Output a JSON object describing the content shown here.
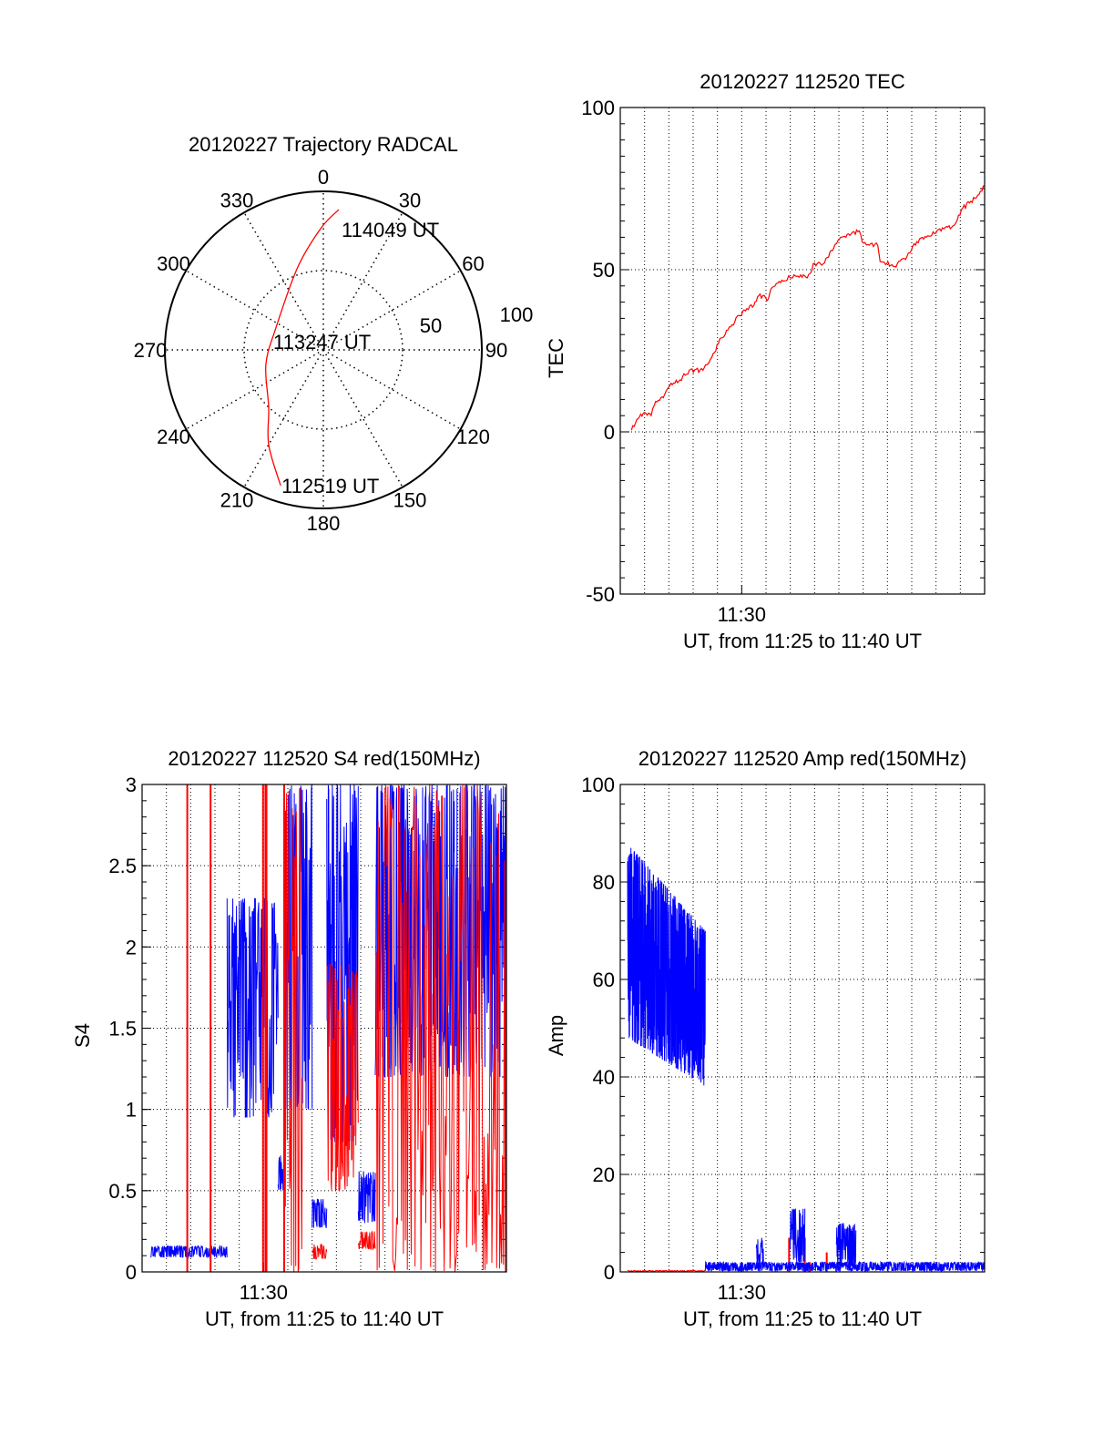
{
  "chart_data": [
    {
      "type": "polar",
      "title": "20120227 Trajectory RADCAL",
      "angle_labels": [
        "0",
        "30",
        "60",
        "90",
        "120",
        "150",
        "180",
        "210",
        "240",
        "270",
        "300",
        "330"
      ],
      "radius_labels": [
        "50",
        "100"
      ],
      "rlim": [
        0,
        100
      ],
      "grid": "dotted",
      "trajectory": {
        "color": "#ff0000",
        "azimuth": [
          197.5,
          210,
          223.6,
          255.7,
          294.8,
          342.9,
          359,
          6.3
        ],
        "radius": [
          89.7,
          69,
          50,
          37.4,
          33,
          54.7,
          77,
          89
        ]
      },
      "annotations": [
        "112519 UT",
        "113247 UT",
        "114049 UT"
      ]
    },
    {
      "type": "line",
      "title": "20120227 112520 TEC",
      "xlabel": "UT, from 11:25 to 11:40 UT",
      "ylabel": "TEC",
      "x_unit": "minutes after 11:25 UT",
      "xlim": [
        0,
        15
      ],
      "xtick_values": [
        5
      ],
      "xtick_labels": [
        "11:30"
      ],
      "ylim": [
        -50,
        100
      ],
      "ytick_values": [
        -50,
        0,
        50,
        100
      ],
      "ytick_labels": [
        "-50",
        "0",
        "50",
        "100"
      ],
      "grid": true,
      "series": [
        {
          "name": "TEC",
          "color": "#ff0000",
          "x": [
            0.46,
            0.84,
            1.27,
            1.46,
            1.77,
            2.09,
            2.46,
            2.84,
            3.4,
            3.77,
            4.15,
            4.6,
            5.1,
            5.5,
            5.7,
            6.1,
            6.2,
            6.6,
            7.15,
            7.7,
            8.0,
            8.3,
            8.96,
            9.84,
            9.96,
            10.6,
            10.7,
            11.3,
            11.8,
            12.1,
            12.6,
            13.1,
            13.7,
            14.1,
            14.6,
            15.0
          ],
          "y": [
            0.5,
            5.5,
            5,
            9.4,
            10.5,
            15,
            16,
            19,
            19,
            23,
            29,
            33,
            37.6,
            39,
            42,
            41,
            44,
            46,
            48.4,
            47.5,
            52,
            51.4,
            59,
            62,
            58.6,
            57.5,
            52.5,
            51,
            54,
            58,
            60,
            62.4,
            63.5,
            69,
            72,
            76
          ]
        }
      ]
    },
    {
      "type": "line",
      "title": "20120227 112520 S4 red(150MHz)",
      "xlabel": "UT, from 11:25 to 11:40 UT",
      "ylabel": "S4",
      "x_unit": "minutes after 11:25 UT",
      "xlim": [
        0,
        15
      ],
      "xtick_values": [
        5
      ],
      "xtick_labels": [
        "11:30"
      ],
      "ylim": [
        0,
        3
      ],
      "ytick_values": [
        0,
        0.5,
        1,
        1.5,
        2,
        2.5,
        3
      ],
      "ytick_labels": [
        "0",
        "0.5",
        "1",
        "1.5",
        "2",
        "2.5",
        "3"
      ],
      "grid": true,
      "series": [
        {
          "name": "S4 (blue)",
          "color": "#0000ff",
          "segments": [
            {
              "t": [
                0.35,
                3.5
              ],
              "lo": [
                0.09,
                0.09
              ],
              "hi": [
                0.16,
                0.16
              ],
              "density": 60
            },
            {
              "t": [
                3.5,
                5.6
              ],
              "lo": [
                0.95,
                0.95
              ],
              "hi": [
                2.3,
                2.3
              ],
              "density": 60
            },
            {
              "t": [
                5.6,
                5.85
              ],
              "lo": [
                0.5,
                0.5
              ],
              "hi": [
                0.72,
                0.72
              ],
              "density": 60
            },
            {
              "t": [
                5.85,
                7.0
              ],
              "lo": [
                1.0,
                1.0
              ],
              "hi": [
                3.0,
                3.0
              ],
              "density": 60
            },
            {
              "t": [
                7.0,
                7.6
              ],
              "lo": [
                0.27,
                0.27
              ],
              "hi": [
                0.45,
                0.45
              ],
              "density": 60
            },
            {
              "t": [
                7.6,
                8.9
              ],
              "lo": [
                0.8,
                0.8
              ],
              "hi": [
                3.0,
                3.0
              ],
              "density": 60
            },
            {
              "t": [
                8.9,
                9.6
              ],
              "lo": [
                0.3,
                0.3
              ],
              "hi": [
                0.62,
                0.62
              ],
              "density": 60
            },
            {
              "t": [
                9.6,
                15.0
              ],
              "lo": [
                1.2,
                1.2
              ],
              "hi": [
                3.0,
                3.0
              ],
              "density": 60
            }
          ],
          "spikes": []
        },
        {
          "name": "S4 (red)",
          "color": "#ff0000",
          "segments": [
            {
              "t": [
                5.9,
                6.6
              ],
              "lo": [
                0,
                0
              ],
              "hi": [
                3,
                3
              ],
              "density": 40
            },
            {
              "t": [
                7.0,
                7.6
              ],
              "lo": [
                0.08,
                0.08
              ],
              "hi": [
                0.17,
                0.17
              ],
              "density": 60
            },
            {
              "t": [
                7.6,
                8.9
              ],
              "lo": [
                0.5,
                0.5
              ],
              "hi": [
                1.9,
                1.9
              ],
              "density": 50
            },
            {
              "t": [
                8.9,
                9.6
              ],
              "lo": [
                0.14,
                0.14
              ],
              "hi": [
                0.25,
                0.25
              ],
              "density": 60
            },
            {
              "t": [
                9.6,
                15.0
              ],
              "lo": [
                0,
                0
              ],
              "hi": [
                3,
                3
              ],
              "density": 25
            }
          ],
          "spikes": [
            {
              "t": 1.86,
              "v": 3
            },
            {
              "t": 2.82,
              "v": 3
            },
            {
              "t": 4.98,
              "v": 3
            },
            {
              "t": 5.08,
              "v": 3
            },
            {
              "t": 5.12,
              "v": 3
            },
            {
              "t": 5.85,
              "v": 3
            }
          ]
        }
      ]
    },
    {
      "type": "line",
      "title": "20120227 112520 Amp red(150MHz)",
      "xlabel": "UT, from 11:25 to 11:40 UT",
      "ylabel": "Amp",
      "x_unit": "minutes after 11:25 UT",
      "xlim": [
        0,
        15
      ],
      "xtick_values": [
        5
      ],
      "xtick_labels": [
        "11:30"
      ],
      "ylim": [
        0,
        100
      ],
      "ytick_values": [
        0,
        20,
        40,
        60,
        80,
        100
      ],
      "ytick_labels": [
        "0",
        "20",
        "40",
        "60",
        "80",
        "100"
      ],
      "grid": true,
      "series": [
        {
          "name": "Amp (red)",
          "color": "#ff0000",
          "segments": [
            {
              "t": [
                0.3,
                3.5
              ],
              "lo": [
                0.1,
                0.1
              ],
              "hi": [
                0.3,
                0.3
              ],
              "density": 30
            }
          ],
          "spikes": [
            {
              "t": 6.95,
              "v": 7
            },
            {
              "t": 7.6,
              "v": 7
            },
            {
              "t": 7.8,
              "v": 2
            },
            {
              "t": 8.5,
              "v": 4
            }
          ]
        },
        {
          "name": "Amp (blue)",
          "color": "#0000ff",
          "segments": [
            {
              "t": [
                0.3,
                3.5
              ],
              "lo": [
                48,
                38
              ],
              "hi": [
                88,
                70
              ],
              "density": 160
            },
            {
              "t": [
                3.5,
                15.0
              ],
              "lo": [
                0.2,
                0.2
              ],
              "hi": [
                2.0,
                2.0
              ],
              "density": 80
            },
            {
              "t": [
                5.6,
                5.9
              ],
              "lo": [
                1,
                1
              ],
              "hi": [
                7,
                7
              ],
              "density": 80
            },
            {
              "t": [
                7.0,
                7.6
              ],
              "lo": [
                2,
                2
              ],
              "hi": [
                13,
                13
              ],
              "density": 80
            },
            {
              "t": [
                8.9,
                9.7
              ],
              "lo": [
                1,
                1
              ],
              "hi": [
                10,
                10
              ],
              "density": 80
            }
          ],
          "spikes": []
        }
      ]
    }
  ]
}
